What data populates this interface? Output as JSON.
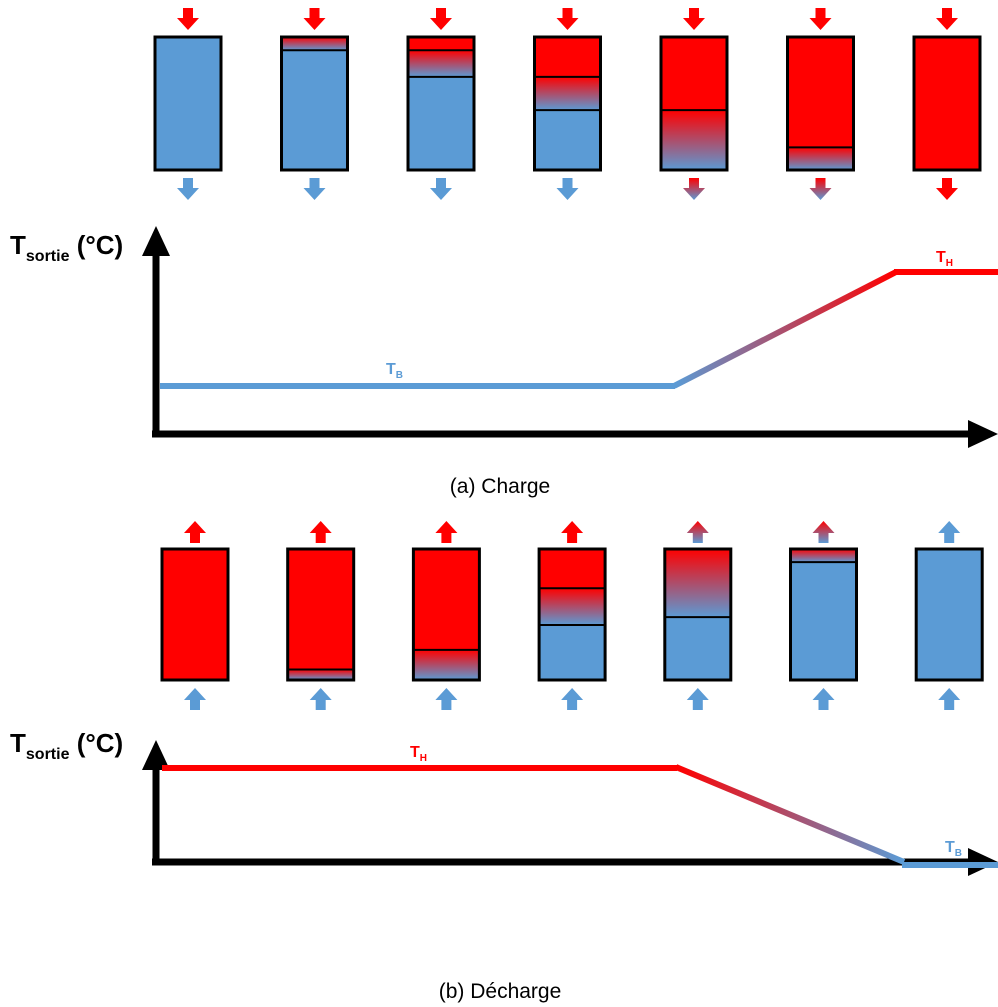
{
  "colors": {
    "hot": "#ff0000",
    "cold": "#5b9bd5",
    "axis": "#000000",
    "outline": "#000000"
  },
  "charge": {
    "caption": "(a) Charge",
    "y_axis_label": {
      "main": "T",
      "sub": "sortie",
      "unit": " (°C)"
    },
    "label_high": {
      "main": "T",
      "sub": "H"
    },
    "label_low": {
      "main": "T",
      "sub": "B"
    },
    "tanks": [
      {
        "hot_fraction": 0.0,
        "gradient_fraction": 0.0
      },
      {
        "hot_fraction": 0.0,
        "gradient_fraction": 0.1
      },
      {
        "hot_fraction": 0.1,
        "gradient_fraction": 0.2
      },
      {
        "hot_fraction": 0.3,
        "gradient_fraction": 0.25
      },
      {
        "hot_fraction": 0.55,
        "gradient_fraction": 0.45
      },
      {
        "hot_fraction": 0.83,
        "gradient_fraction": 0.17
      },
      {
        "hot_fraction": 1.0,
        "gradient_fraction": 0.0
      }
    ],
    "outlet_arrows": [
      "cold",
      "cold",
      "cold",
      "cold",
      "gradient",
      "gradient",
      "hot"
    ]
  },
  "decharge": {
    "caption": "(b) Décharge",
    "y_axis_label": {
      "main": "T",
      "sub": "sortie",
      "unit": " (°C)"
    },
    "label_high": {
      "main": "T",
      "sub": "H"
    },
    "label_low": {
      "main": "T",
      "sub": "B"
    },
    "tanks": [
      {
        "hot_fraction": 1.0,
        "gradient_fraction": 0.0
      },
      {
        "hot_fraction": 0.92,
        "gradient_fraction": 0.08
      },
      {
        "hot_fraction": 0.77,
        "gradient_fraction": 0.23
      },
      {
        "hot_fraction": 0.3,
        "gradient_fraction": 0.28
      },
      {
        "hot_fraction": 0.0,
        "gradient_fraction": 0.52
      },
      {
        "hot_fraction": 0.0,
        "gradient_fraction": 0.1
      },
      {
        "hot_fraction": 0.0,
        "gradient_fraction": 0.0
      }
    ],
    "outlet_arrows": [
      "hot",
      "hot",
      "hot",
      "hot",
      "gradient",
      "gradient",
      "cold"
    ]
  }
}
